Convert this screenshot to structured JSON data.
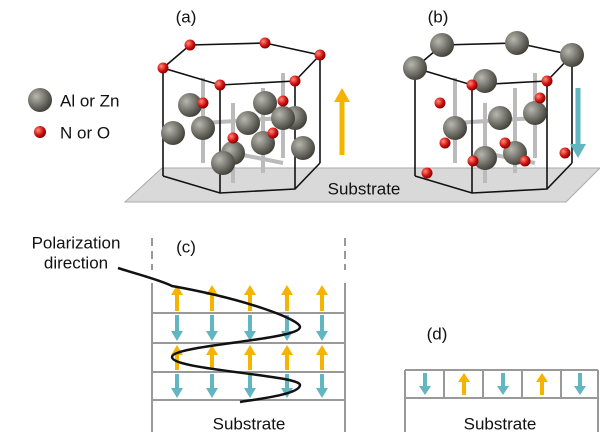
{
  "panels": [
    {
      "label": "(a)"
    },
    {
      "label": "(b)"
    },
    {
      "label": "(c)"
    },
    {
      "label": "(d)"
    }
  ],
  "legend": [
    {
      "label": "Al or Zn"
    },
    {
      "label": "N or O"
    }
  ],
  "top_substrate": "Substrate",
  "polarization_label": [
    "Polarization",
    "direction"
  ],
  "c_substrate": "Substrate",
  "d_substrate": "Substrate"
}
